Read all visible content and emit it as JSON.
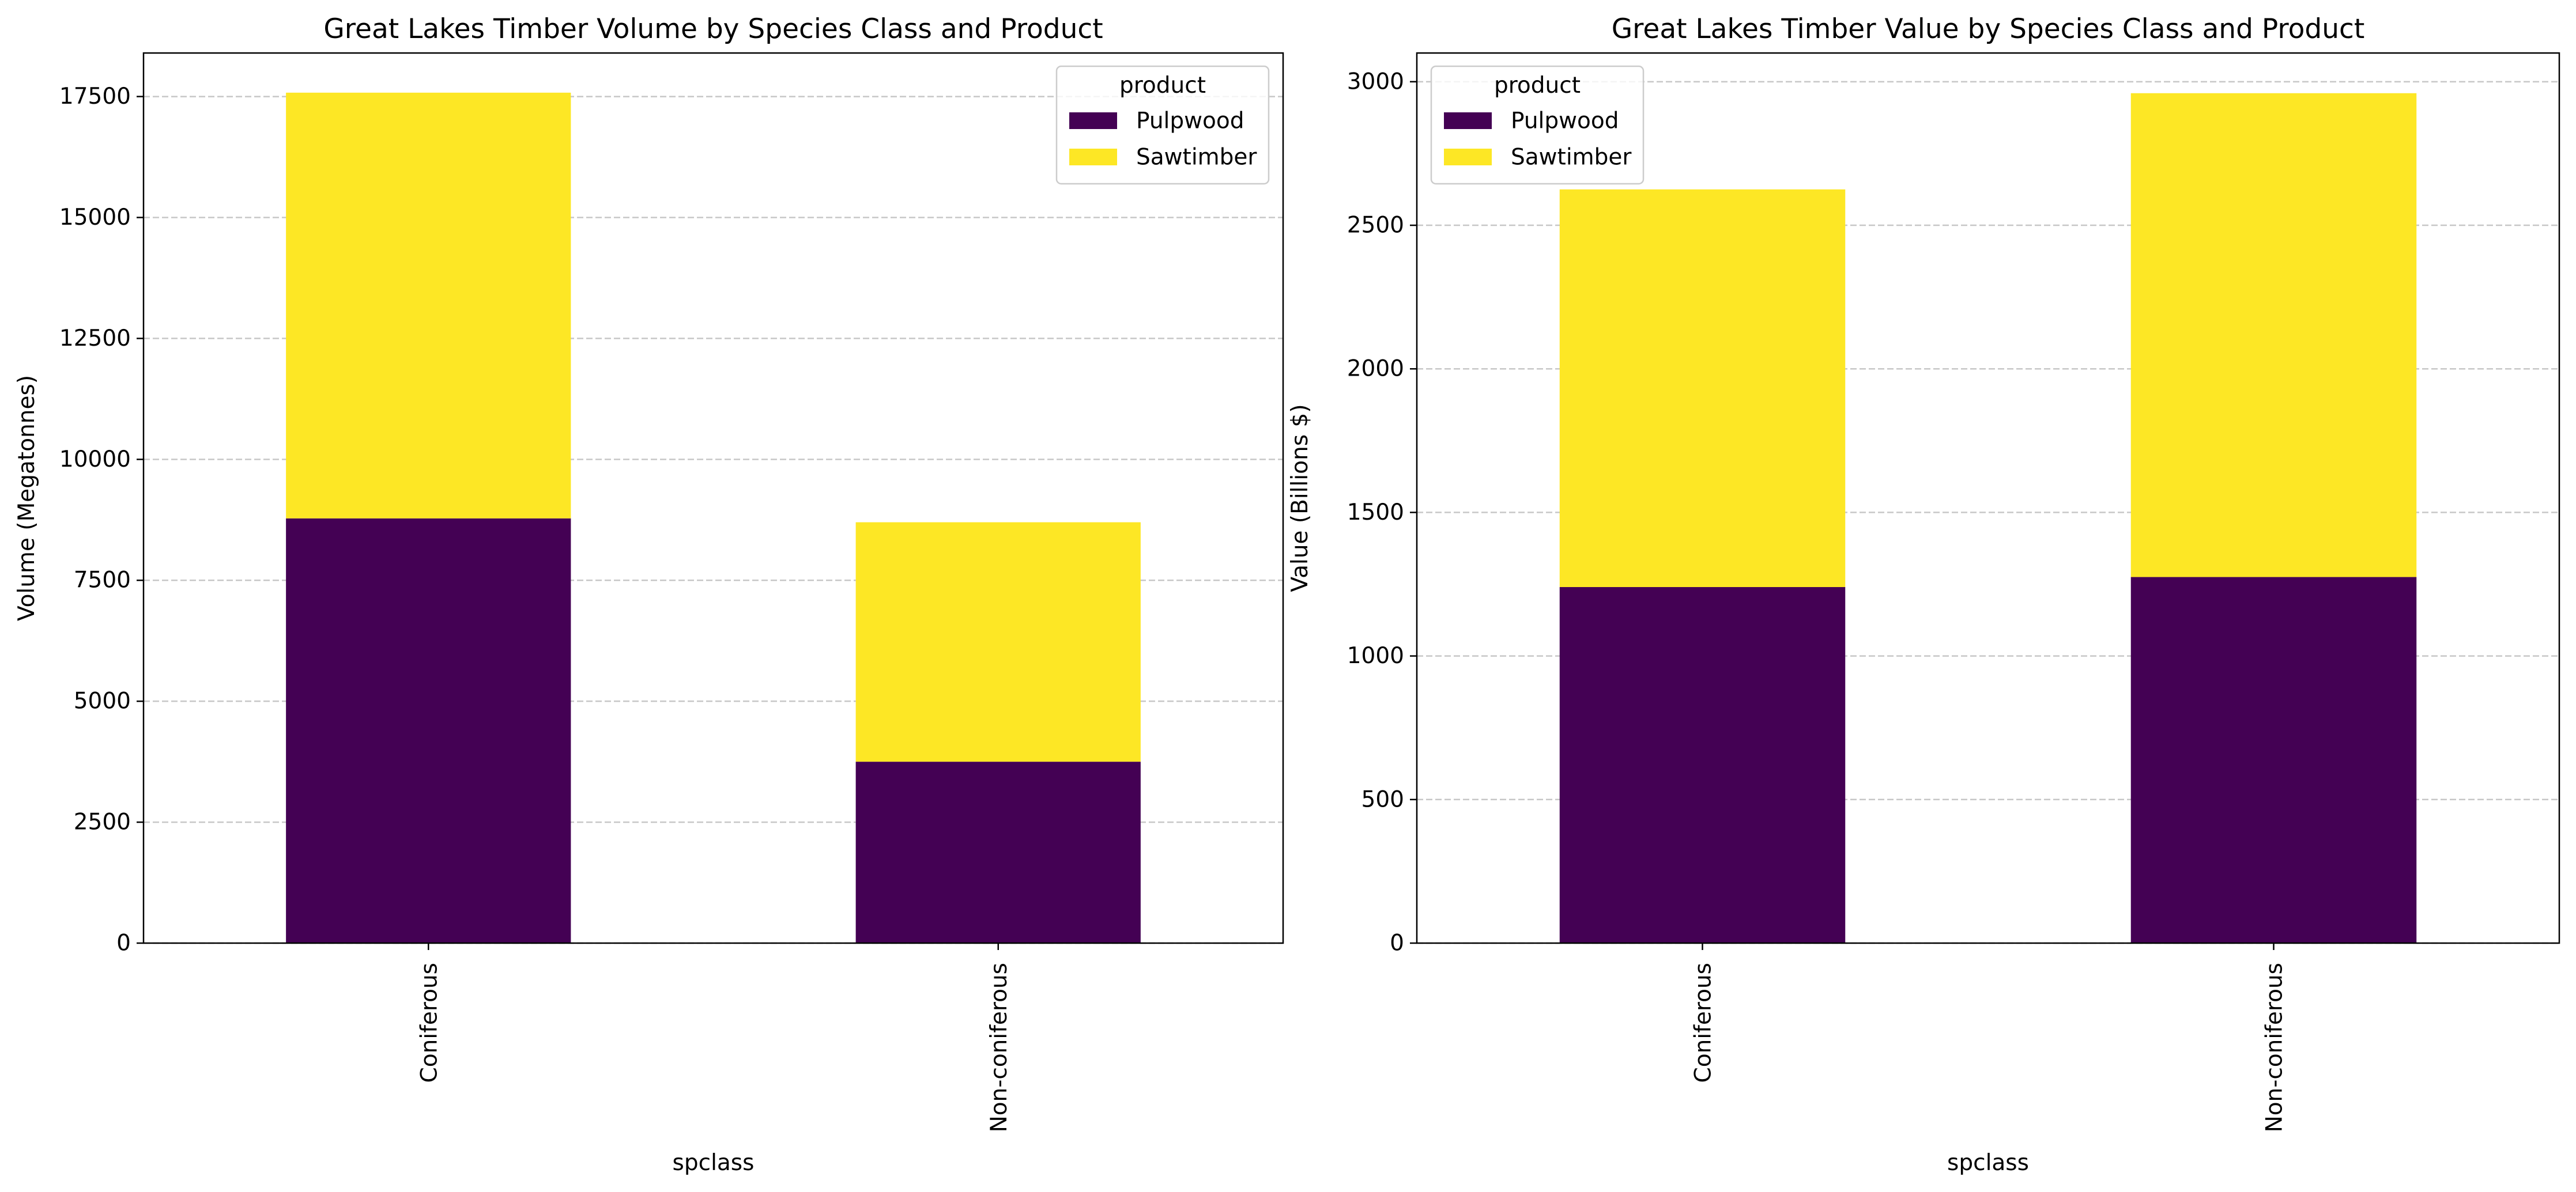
{
  "chart_data": [
    {
      "type": "bar",
      "stacked": true,
      "title": "Great Lakes Timber Volume by Species Class and Product",
      "xlabel": "spclass",
      "ylabel": "Volume (Megatonnes)",
      "categories": [
        "Coniferous",
        "Non-coniferous"
      ],
      "series": [
        {
          "name": "Pulpwood",
          "values": [
            8780,
            3750
          ],
          "color": "#440154"
        },
        {
          "name": "Sawtimber",
          "values": [
            8800,
            4950
          ],
          "color": "#fde725"
        }
      ],
      "ylim": [
        0,
        18400
      ],
      "yticks": [
        0,
        2500,
        5000,
        7500,
        10000,
        12500,
        15000,
        17500
      ],
      "ytick_labels": [
        "0",
        "2500",
        "5000",
        "7500",
        "10000",
        "12500",
        "15000",
        "17500"
      ],
      "grid": "y, dashed",
      "legend": {
        "title": "product",
        "position": "top-right"
      }
    },
    {
      "type": "bar",
      "stacked": true,
      "title": "Great Lakes Timber Value by Species Class and Product",
      "xlabel": "spclass",
      "ylabel": "Value (Billions $)",
      "categories": [
        "Coniferous",
        "Non-coniferous"
      ],
      "series": [
        {
          "name": "Pulpwood",
          "values": [
            1240,
            1275
          ],
          "color": "#440154"
        },
        {
          "name": "Sawtimber",
          "values": [
            1385,
            1685
          ],
          "color": "#fde725"
        }
      ],
      "ylim": [
        0,
        3100
      ],
      "yticks": [
        0,
        500,
        1000,
        1500,
        2000,
        2500,
        3000
      ],
      "ytick_labels": [
        "0",
        "500",
        "1000",
        "1500",
        "2000",
        "2500",
        "3000"
      ],
      "grid": "y, dashed",
      "legend": {
        "title": "product",
        "position": "top-left"
      }
    }
  ]
}
